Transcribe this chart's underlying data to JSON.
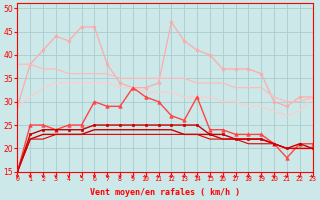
{
  "x": [
    0,
    1,
    2,
    3,
    4,
    5,
    6,
    7,
    8,
    9,
    10,
    11,
    12,
    13,
    14,
    15,
    16,
    17,
    18,
    19,
    20,
    21,
    22,
    23
  ],
  "series": [
    {
      "color": "#ffaaaa",
      "marker": "o",
      "markersize": 2.0,
      "linewidth": 0.9,
      "values": [
        29,
        38,
        41,
        44,
        43,
        46,
        46,
        38,
        34,
        33,
        33,
        34,
        47,
        43,
        41,
        40,
        37,
        37,
        37,
        36,
        30,
        29,
        31,
        31
      ]
    },
    {
      "color": "#ffbbbb",
      "marker": null,
      "markersize": 0,
      "linewidth": 0.9,
      "values": [
        38,
        38,
        37,
        37,
        36,
        36,
        36,
        36,
        35,
        35,
        35,
        35,
        35,
        35,
        34,
        34,
        34,
        33,
        33,
        33,
        31,
        30,
        30,
        31
      ]
    },
    {
      "color": "#ffcccc",
      "marker": null,
      "markersize": 0,
      "linewidth": 0.9,
      "values": [
        29,
        31,
        33,
        34,
        34,
        34,
        34,
        34,
        33,
        33,
        32,
        32,
        32,
        31,
        31,
        31,
        30,
        30,
        29,
        29,
        28,
        27,
        28,
        31
      ]
    },
    {
      "color": "#ff4444",
      "marker": "^",
      "markersize": 2.5,
      "linewidth": 1.0,
      "values": [
        15,
        25,
        25,
        24,
        25,
        25,
        30,
        29,
        29,
        33,
        31,
        30,
        27,
        26,
        31,
        24,
        24,
        23,
        23,
        23,
        21,
        18,
        21,
        21
      ]
    },
    {
      "color": "#cc0000",
      "marker": "s",
      "markersize": 2.0,
      "linewidth": 1.0,
      "values": [
        15,
        23,
        24,
        24,
        24,
        24,
        25,
        25,
        25,
        25,
        25,
        25,
        25,
        25,
        25,
        23,
        23,
        22,
        22,
        22,
        21,
        20,
        21,
        20
      ]
    },
    {
      "color": "#cc0000",
      "marker": null,
      "markersize": 0,
      "linewidth": 1.0,
      "values": [
        15,
        22,
        23,
        23,
        23,
        23,
        24,
        24,
        24,
        24,
        24,
        24,
        24,
        23,
        23,
        23,
        22,
        22,
        22,
        22,
        21,
        20,
        20,
        20
      ]
    },
    {
      "color": "#dd0000",
      "marker": null,
      "markersize": 0,
      "linewidth": 0.8,
      "values": [
        15,
        22,
        22,
        23,
        23,
        23,
        23,
        23,
        23,
        23,
        23,
        23,
        23,
        23,
        23,
        22,
        22,
        22,
        21,
        21,
        21,
        20,
        20,
        20
      ]
    }
  ],
  "xlim": [
    0,
    23
  ],
  "ylim": [
    15,
    51
  ],
  "yticks": [
    15,
    20,
    25,
    30,
    35,
    40,
    45,
    50
  ],
  "xticks": [
    0,
    1,
    2,
    3,
    4,
    5,
    6,
    7,
    8,
    9,
    10,
    11,
    12,
    13,
    14,
    15,
    16,
    17,
    18,
    19,
    20,
    21,
    22,
    23
  ],
  "xlabel": "Vent moyen/en rafales ( km/h )",
  "xlabel_color": "#ff0000",
  "bg_color": "#cce8e8",
  "grid_color": "#aacccc",
  "tick_color": "#ff0000",
  "spine_color": "#ff0000"
}
